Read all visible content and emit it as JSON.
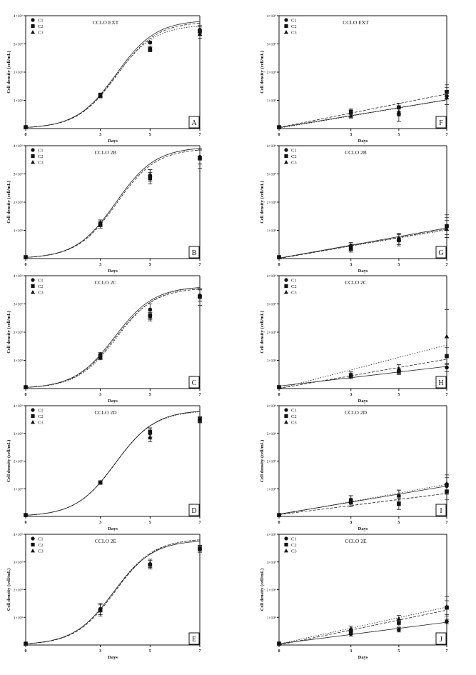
{
  "figure": {
    "panel_count": 10
  },
  "chart_data": [
    {
      "letter": "A",
      "title": "CCLO EXT",
      "type": "scatter",
      "xlabel": "Days",
      "ylabel": "Cell density (cell/mL)",
      "xticks": [
        "0",
        "3",
        "5",
        "7"
      ],
      "ytick_labels": [
        "1×10⁶",
        "2×10⁶",
        "3×10⁶",
        "4×10⁶"
      ],
      "xlim": [
        0,
        7
      ],
      "ylim": [
        0,
        4000000
      ],
      "legend": [
        "C1",
        "C2",
        "C3"
      ],
      "legend_position": "top-left",
      "grid": false,
      "x": [
        0,
        3,
        5,
        7
      ],
      "series": [
        {
          "name": "C1",
          "marker": "circle",
          "values": [
            50000,
            1200000,
            3050000,
            3500000
          ],
          "errors": [
            0,
            60000,
            50000,
            150000
          ],
          "fit": "sigmoid"
        },
        {
          "name": "C2",
          "marker": "square",
          "values": [
            50000,
            1150000,
            2800000,
            3450000
          ],
          "errors": [
            0,
            60000,
            80000,
            150000
          ],
          "fit": "sigmoid"
        },
        {
          "name": "C3",
          "marker": "triangle",
          "values": [
            50000,
            1180000,
            2850000,
            3350000
          ],
          "errors": [
            0,
            60000,
            70000,
            150000
          ],
          "fit": "sigmoid"
        }
      ]
    },
    {
      "letter": "B",
      "title": "CCLO 2B",
      "type": "scatter",
      "xlabel": "Days",
      "ylabel": "Cell density (cell/mL)",
      "xticks": [
        "0",
        "3",
        "5",
        "7"
      ],
      "ytick_labels": [
        "1×10⁶",
        "2×10⁶",
        "3×10⁶",
        "4×10⁶"
      ],
      "xlim": [
        0,
        7
      ],
      "ylim": [
        0,
        4000000
      ],
      "legend": [
        "C1",
        "C2",
        "C3"
      ],
      "legend_position": "top-left",
      "grid": false,
      "x": [
        0,
        3,
        5,
        7
      ],
      "series": [
        {
          "name": "C1",
          "marker": "circle",
          "values": [
            50000,
            1250000,
            2950000,
            3600000
          ],
          "errors": [
            0,
            120000,
            200000,
            250000
          ],
          "fit": "sigmoid"
        },
        {
          "name": "C2",
          "marker": "square",
          "values": [
            50000,
            1200000,
            2850000,
            3550000
          ],
          "errors": [
            0,
            120000,
            200000,
            350000
          ],
          "fit": "sigmoid"
        },
        {
          "name": "C3",
          "marker": "triangle",
          "values": [
            50000,
            1250000,
            2950000,
            3600000
          ],
          "errors": [
            0,
            120000,
            200000,
            250000
          ],
          "fit": "sigmoid"
        }
      ]
    },
    {
      "letter": "C",
      "title": "CCLO 2C",
      "type": "scatter",
      "xlabel": "Days",
      "ylabel": "Cell density (cell/mL)",
      "xticks": [
        "0",
        "3",
        "5",
        "7"
      ],
      "ytick_labels": [
        "1×10⁶",
        "2×10⁶",
        "3×10⁶",
        "4×10⁶"
      ],
      "xlim": [
        0,
        7
      ],
      "ylim": [
        0,
        4000000
      ],
      "legend": [
        "C1",
        "C2",
        "C3"
      ],
      "legend_position": "top-left",
      "grid": false,
      "x": [
        0,
        3,
        5,
        7
      ],
      "series": [
        {
          "name": "C1",
          "marker": "circle",
          "values": [
            50000,
            1200000,
            2800000,
            3300000
          ],
          "errors": [
            0,
            80000,
            200000,
            200000
          ],
          "fit": "sigmoid"
        },
        {
          "name": "C2",
          "marker": "square",
          "values": [
            50000,
            1150000,
            2600000,
            3250000
          ],
          "errors": [
            0,
            80000,
            150000,
            300000
          ],
          "fit": "sigmoid"
        },
        {
          "name": "C3",
          "marker": "triangle",
          "values": [
            50000,
            1100000,
            2550000,
            3300000
          ],
          "errors": [
            0,
            80000,
            150000,
            200000
          ],
          "fit": "sigmoid"
        }
      ]
    },
    {
      "letter": "D",
      "title": "CCLO 2D",
      "type": "scatter",
      "xlabel": "Days",
      "ylabel": "Cell density (cell/mL)",
      "xticks": [
        "0",
        "3",
        "5",
        "7"
      ],
      "ytick_labels": [
        "1×10⁶",
        "2×10⁶",
        "3×10⁶",
        "4×10⁶"
      ],
      "xlim": [
        0,
        7
      ],
      "ylim": [
        0,
        4000000
      ],
      "legend": [
        "C1",
        "C2",
        "C3"
      ],
      "legend_position": "top-left",
      "grid": false,
      "x": [
        0,
        3,
        5,
        7
      ],
      "series": [
        {
          "name": "C1",
          "marker": "circle",
          "values": [
            50000,
            1230000,
            3000000,
            3500000
          ],
          "errors": [
            0,
            60000,
            150000,
            100000
          ],
          "fit": "sigmoid"
        },
        {
          "name": "C2",
          "marker": "square",
          "values": [
            50000,
            1220000,
            3050000,
            3500000
          ],
          "errors": [
            0,
            60000,
            150000,
            100000
          ],
          "fit": "sigmoid"
        },
        {
          "name": "C3",
          "marker": "triangle",
          "values": [
            50000,
            1230000,
            2850000,
            3480000
          ],
          "errors": [
            0,
            60000,
            150000,
            100000
          ],
          "fit": "sigmoid"
        }
      ]
    },
    {
      "letter": "E",
      "title": "CCLO 2E",
      "type": "scatter",
      "xlabel": "Days",
      "ylabel": "Cell density (cell/mL)",
      "xticks": [
        "0",
        "3",
        "5",
        "7"
      ],
      "ytick_labels": [
        "1×10⁶",
        "2×10⁶",
        "3×10⁶",
        "4×10⁶"
      ],
      "xlim": [
        0,
        7
      ],
      "ylim": [
        0,
        4000000
      ],
      "legend": [
        "C1",
        "C2",
        "C3"
      ],
      "legend_position": "top-left",
      "grid": false,
      "x": [
        0,
        3,
        5,
        7
      ],
      "series": [
        {
          "name": "C1",
          "marker": "circle",
          "values": [
            50000,
            1300000,
            2900000,
            3450000
          ],
          "errors": [
            0,
            200000,
            150000,
            100000
          ],
          "fit": "sigmoid"
        },
        {
          "name": "C2",
          "marker": "square",
          "values": [
            50000,
            1250000,
            2900000,
            3500000
          ],
          "errors": [
            0,
            200000,
            150000,
            100000
          ],
          "fit": "sigmoid"
        },
        {
          "name": "C3",
          "marker": "triangle",
          "values": [
            50000,
            1300000,
            2950000,
            3500000
          ],
          "errors": [
            0,
            200000,
            150000,
            100000
          ],
          "fit": "sigmoid"
        }
      ]
    },
    {
      "letter": "F",
      "title": "CCLO EXT",
      "type": "scatter",
      "xlabel": "Days",
      "ylabel": "Cell density (cell/mL)",
      "xticks": [
        "0",
        "3",
        "5",
        "7"
      ],
      "ytick_labels": [
        "1×10⁶",
        "2×10⁶",
        "3×10⁶",
        "4×10⁶"
      ],
      "xlim": [
        0,
        7
      ],
      "ylim": [
        0,
        4000000
      ],
      "legend": [
        "C1",
        "C2",
        "C3"
      ],
      "legend_position": "top-left",
      "grid": false,
      "x": [
        0,
        3,
        5,
        7
      ],
      "series": [
        {
          "name": "C1",
          "marker": "circle",
          "values": [
            50000,
            550000,
            500000,
            1150000
          ],
          "errors": [
            0,
            100000,
            250000,
            300000
          ],
          "fit": "linear"
        },
        {
          "name": "C2",
          "marker": "square",
          "values": [
            50000,
            600000,
            750000,
            1300000
          ],
          "errors": [
            0,
            100000,
            150000,
            250000
          ],
          "fit": "linear"
        },
        {
          "name": "C3",
          "marker": "triangle",
          "values": [
            50000,
            450000,
            600000,
            1100000
          ],
          "errors": [
            0,
            80000,
            150000,
            250000
          ],
          "fit": "linear"
        }
      ]
    },
    {
      "letter": "G",
      "title": "CCLO 2B",
      "type": "scatter",
      "xlabel": "Days",
      "ylabel": "Cell density (cell/mL)",
      "xticks": [
        "0",
        "3",
        "5",
        "7"
      ],
      "ytick_labels": [
        "1×10⁶",
        "2×10⁶",
        "3×10⁶",
        "4×10⁶"
      ],
      "xlim": [
        0,
        7
      ],
      "ylim": [
        0,
        4000000
      ],
      "legend": [
        "C1",
        "C2",
        "C3"
      ],
      "legend_position": "top-left",
      "grid": false,
      "x": [
        0,
        3,
        5,
        7
      ],
      "series": [
        {
          "name": "C1",
          "marker": "circle",
          "values": [
            50000,
            450000,
            700000,
            1150000
          ],
          "errors": [
            0,
            120000,
            200000,
            400000
          ],
          "fit": "linear"
        },
        {
          "name": "C2",
          "marker": "square",
          "values": [
            50000,
            350000,
            650000,
            1150000
          ],
          "errors": [
            0,
            120000,
            200000,
            300000
          ],
          "fit": "linear"
        },
        {
          "name": "C3",
          "marker": "triangle",
          "values": [
            50000,
            400000,
            700000,
            1050000
          ],
          "errors": [
            0,
            120000,
            200000,
            300000
          ],
          "fit": "linear"
        }
      ]
    },
    {
      "letter": "H",
      "title": "CCLO 2C",
      "type": "scatter",
      "xlabel": "Days",
      "ylabel": "Cell density (cell/mL)",
      "xticks": [
        "0",
        "3",
        "5",
        "7"
      ],
      "ytick_labels": [
        "1×10⁶",
        "2×10⁶",
        "3×10⁶",
        "4×10⁶"
      ],
      "xlim": [
        0,
        7
      ],
      "ylim": [
        0,
        4000000
      ],
      "legend": [
        "C1",
        "C2",
        "C3"
      ],
      "legend_position": "top-left",
      "grid": false,
      "x": [
        0,
        3,
        5,
        7
      ],
      "series": [
        {
          "name": "C1",
          "marker": "circle",
          "values": [
            50000,
            450000,
            600000,
            750000
          ],
          "errors": [
            0,
            100000,
            100000,
            150000
          ],
          "fit": "linear"
        },
        {
          "name": "C2",
          "marker": "square",
          "values": [
            50000,
            450000,
            600000,
            1150000
          ],
          "errors": [
            0,
            100000,
            100000,
            300000
          ],
          "fit": "linear"
        },
        {
          "name": "C3",
          "marker": "triangle",
          "values": [
            50000,
            500000,
            700000,
            1850000
          ],
          "errors": [
            0,
            100000,
            150000,
            950000
          ],
          "fit": "linear"
        }
      ]
    },
    {
      "letter": "I",
      "title": "CCLO 2D",
      "type": "scatter",
      "xlabel": "Days",
      "ylabel": "Cell density (cell/mL)",
      "xticks": [
        "0",
        "3",
        "5",
        "7"
      ],
      "ytick_labels": [
        "1×10⁶",
        "2×10⁶",
        "3×10⁶",
        "4×10⁶"
      ],
      "xlim": [
        0,
        7
      ],
      "ylim": [
        0,
        4000000
      ],
      "legend": [
        "C1",
        "C2",
        "C3"
      ],
      "legend_position": "top-left",
      "grid": false,
      "x": [
        0,
        3,
        5,
        7
      ],
      "series": [
        {
          "name": "C1",
          "marker": "circle",
          "values": [
            50000,
            600000,
            750000,
            1100000
          ],
          "errors": [
            0,
            150000,
            200000,
            300000
          ],
          "fit": "linear"
        },
        {
          "name": "C2",
          "marker": "square",
          "values": [
            50000,
            500000,
            450000,
            900000
          ],
          "errors": [
            0,
            150000,
            200000,
            300000
          ],
          "fit": "linear"
        },
        {
          "name": "C3",
          "marker": "triangle",
          "values": [
            50000,
            600000,
            750000,
            1200000
          ],
          "errors": [
            0,
            150000,
            200000,
            300000
          ],
          "fit": "linear"
        }
      ]
    },
    {
      "letter": "J",
      "title": "CCLO 2E",
      "type": "scatter",
      "xlabel": "Days",
      "ylabel": "Cell density (cell/mL)",
      "xticks": [
        "0",
        "3",
        "5",
        "7"
      ],
      "ytick_labels": [
        "1×10⁶",
        "2×10⁶",
        "3×10⁶",
        "4×10⁶"
      ],
      "xlim": [
        0,
        7
      ],
      "ylim": [
        0,
        4000000
      ],
      "legend": [
        "C1",
        "C2",
        "C3"
      ],
      "legend_position": "top-left",
      "grid": false,
      "x": [
        0,
        3,
        5,
        7
      ],
      "series": [
        {
          "name": "C1",
          "marker": "circle",
          "values": [
            50000,
            400000,
            550000,
            850000
          ],
          "errors": [
            0,
            80000,
            80000,
            80000
          ],
          "fit": "linear"
        },
        {
          "name": "C2",
          "marker": "square",
          "values": [
            50000,
            500000,
            800000,
            1350000
          ],
          "errors": [
            0,
            80000,
            120000,
            250000
          ],
          "fit": "linear"
        },
        {
          "name": "C3",
          "marker": "triangle",
          "values": [
            50000,
            600000,
            950000,
            1400000
          ],
          "errors": [
            0,
            80000,
            120000,
            350000
          ],
          "fit": "linear"
        }
      ]
    }
  ]
}
